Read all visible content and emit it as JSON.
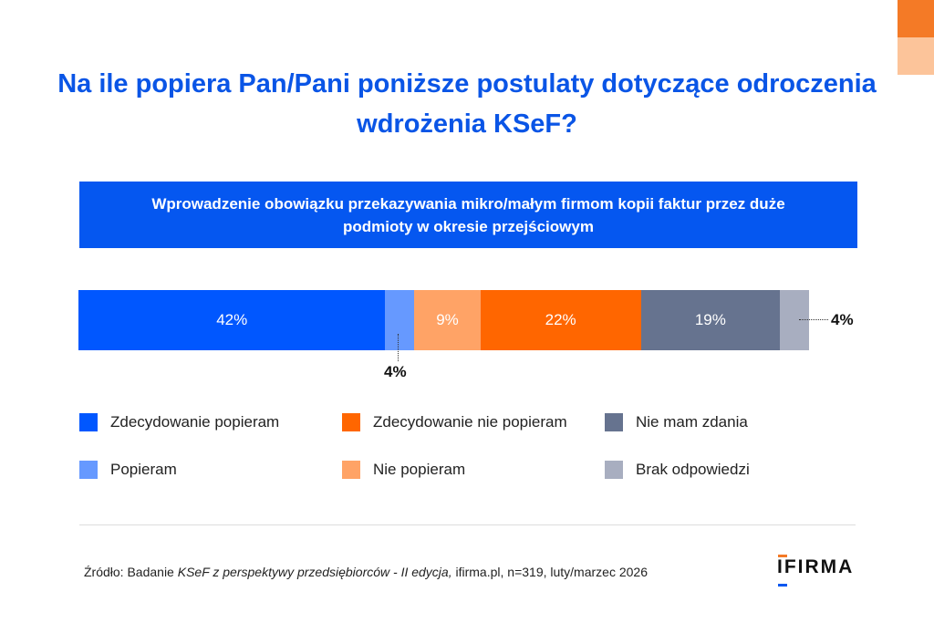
{
  "chart_data": {
    "type": "bar",
    "orientation": "horizontal-stacked",
    "title": "Na ile popiera Pan/Pani poniższe postulaty dotyczące odroczenia wdrożenia KSeF?",
    "category": "Wprowadzenie obowiązku przekazywania mikro/małym firmom kopii faktur przez duże podmioty w okresie przejściowym",
    "series": [
      {
        "name": "Zdecydowanie popieram",
        "value": 42,
        "label": "42%",
        "color": "#0057ff"
      },
      {
        "name": "Popieram",
        "value": 4,
        "label": "4%",
        "color": "#6699ff"
      },
      {
        "name": "Nie popieram",
        "value": 9,
        "label": "9%",
        "color": "#ffa366"
      },
      {
        "name": "Zdecydowanie nie popieram",
        "value": 22,
        "label": "22%",
        "color": "#ff6600"
      },
      {
        "name": "Nie mam zdania",
        "value": 19,
        "label": "19%",
        "color": "#66738f"
      },
      {
        "name": "Brak odpowiedzi",
        "value": 4,
        "label": "4%",
        "color": "#a8aec0"
      }
    ],
    "legend_order": [
      0,
      3,
      4,
      1,
      2,
      5
    ],
    "xlim": [
      0,
      100
    ]
  },
  "source_prefix": "Źródło: Badanie ",
  "source_italic": "KSeF z perspektywy przedsiębiorców - II edycja,",
  "source_suffix": " ifirma.pl, n=319, luty/marzec 2026",
  "logo": "IFIRMA"
}
